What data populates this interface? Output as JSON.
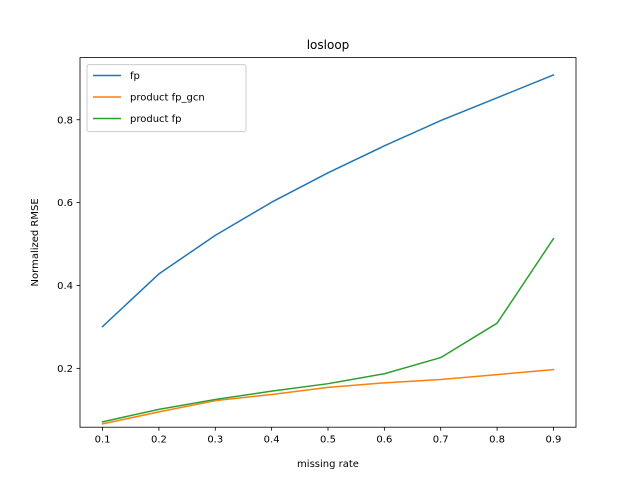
{
  "chart_data": {
    "type": "line",
    "title": "losloop",
    "xlabel": "missing rate",
    "ylabel": "Normalized RMSE",
    "x": [
      0.1,
      0.2,
      0.3,
      0.4,
      0.5,
      0.6,
      0.7,
      0.8,
      0.9
    ],
    "xticks": [
      "0.1",
      "0.2",
      "0.3",
      "0.4",
      "0.5",
      "0.6",
      "0.7",
      "0.8",
      "0.9"
    ],
    "yticks": [
      "0.2",
      "0.4",
      "0.6",
      "0.8"
    ],
    "xlim": [
      0.06,
      0.94
    ],
    "ylim": [
      0.058,
      0.95
    ],
    "grid": false,
    "legend_position": "top-left",
    "series": [
      {
        "name": "fp",
        "color": "#1f77b4",
        "values": [
          0.301,
          0.428,
          0.521,
          0.601,
          0.672,
          0.737,
          0.798,
          0.853,
          0.908
        ]
      },
      {
        "name": "product fp_gcn",
        "color": "#ff7f0e",
        "values": [
          0.066,
          0.095,
          0.122,
          0.137,
          0.154,
          0.165,
          0.173,
          0.185,
          0.197
        ]
      },
      {
        "name": "product fp",
        "color": "#2ca02c",
        "values": [
          0.071,
          0.101,
          0.125,
          0.145,
          0.163,
          0.187,
          0.226,
          0.309,
          0.513
        ]
      }
    ]
  }
}
